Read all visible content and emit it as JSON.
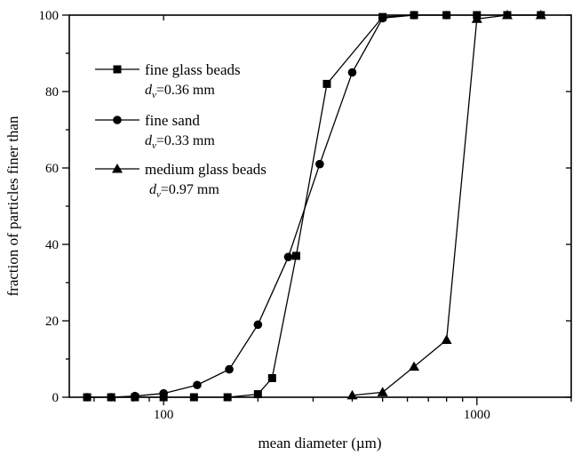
{
  "chart_data": {
    "type": "line",
    "xlabel": "mean diameter (µm)",
    "ylabel": "fraction of particles finer than",
    "xscale": "log",
    "xlim": [
      50,
      2000
    ],
    "ylim": [
      0,
      100
    ],
    "x_tick_labels": [
      {
        "value": 100,
        "label": "100"
      },
      {
        "value": 1000,
        "label": "1000"
      }
    ],
    "y_tick_labels": [
      {
        "value": 0,
        "label": "0"
      },
      {
        "value": 20,
        "label": "20"
      },
      {
        "value": 40,
        "label": "40"
      },
      {
        "value": 60,
        "label": "60"
      },
      {
        "value": 80,
        "label": "80"
      },
      {
        "value": 100,
        "label": "100"
      }
    ],
    "grid": false,
    "legend_position": "top-left",
    "series": [
      {
        "name": "fine glass beads",
        "size_label": "=0.36 mm",
        "marker": "square",
        "points": [
          {
            "x": 57,
            "y": 0
          },
          {
            "x": 68,
            "y": 0
          },
          {
            "x": 81,
            "y": 0
          },
          {
            "x": 100,
            "y": 0
          },
          {
            "x": 125,
            "y": 0
          },
          {
            "x": 160,
            "y": 0
          },
          {
            "x": 200,
            "y": 0.8
          },
          {
            "x": 222,
            "y": 5
          },
          {
            "x": 265,
            "y": 37
          },
          {
            "x": 332,
            "y": 82
          },
          {
            "x": 500,
            "y": 99.5
          },
          {
            "x": 630,
            "y": 100
          },
          {
            "x": 800,
            "y": 100
          },
          {
            "x": 1000,
            "y": 100
          },
          {
            "x": 1250,
            "y": 100
          },
          {
            "x": 1600,
            "y": 100
          }
        ]
      },
      {
        "name": "fine sand",
        "size_label": "=0.33 mm",
        "marker": "circle",
        "points": [
          {
            "x": 57,
            "y": 0
          },
          {
            "x": 68,
            "y": 0
          },
          {
            "x": 81,
            "y": 0.3
          },
          {
            "x": 100,
            "y": 1
          },
          {
            "x": 128,
            "y": 3.2
          },
          {
            "x": 162,
            "y": 7.3
          },
          {
            "x": 200,
            "y": 19
          },
          {
            "x": 250,
            "y": 36.7
          },
          {
            "x": 315,
            "y": 61
          },
          {
            "x": 400,
            "y": 85
          },
          {
            "x": 500,
            "y": 99.2
          },
          {
            "x": 630,
            "y": 100
          },
          {
            "x": 800,
            "y": 100
          }
        ]
      },
      {
        "name": "medium glass beads",
        "size_label": "=0.97 mm",
        "marker": "triangle",
        "points": [
          {
            "x": 400,
            "y": 0.5
          },
          {
            "x": 500,
            "y": 1.3
          },
          {
            "x": 630,
            "y": 8
          },
          {
            "x": 800,
            "y": 15
          },
          {
            "x": 1000,
            "y": 99
          },
          {
            "x": 1250,
            "y": 100
          },
          {
            "x": 1600,
            "y": 100
          }
        ]
      }
    ],
    "legend_symbol": "d",
    "legend_symbol_subscript": "v"
  }
}
